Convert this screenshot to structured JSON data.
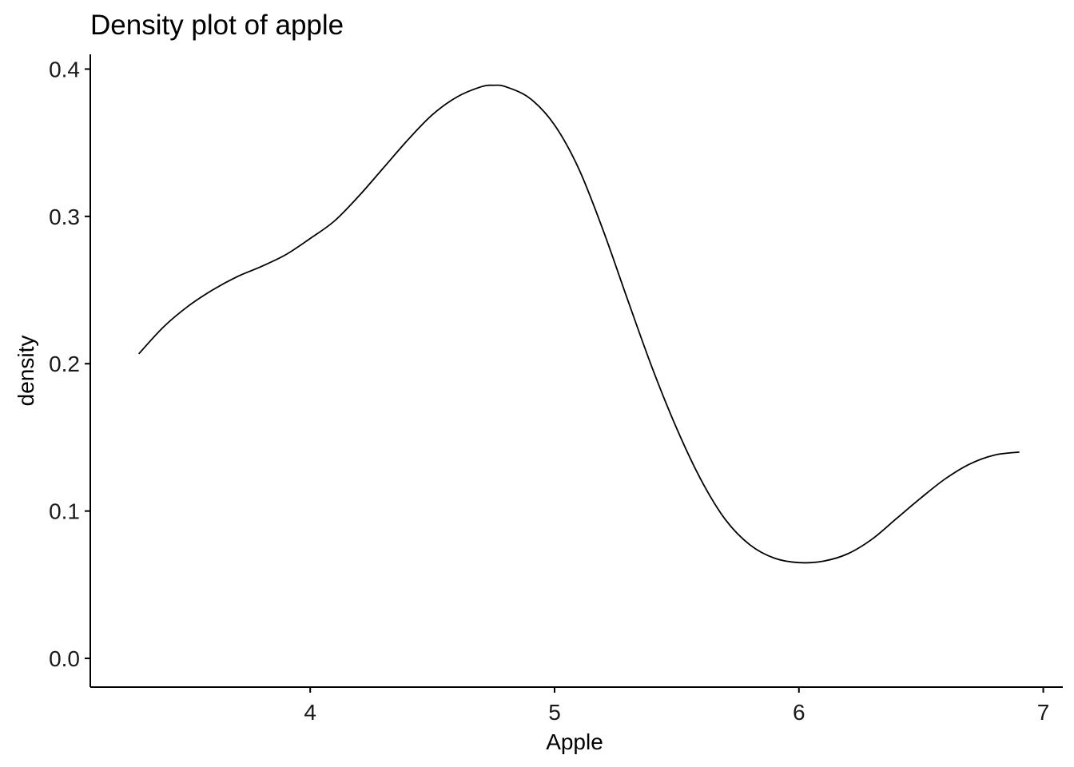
{
  "chart_data": {
    "type": "line",
    "title": "Density plot of apple",
    "xlabel": "Apple",
    "ylabel": "density",
    "xlim": [
      3.1,
      7.08
    ],
    "ylim": [
      -0.0195,
      0.41
    ],
    "x_ticks": [
      4,
      5,
      6,
      7
    ],
    "x_tick_labels": [
      "4",
      "5",
      "6",
      "7"
    ],
    "y_ticks": [
      0.0,
      0.1,
      0.2,
      0.3,
      0.4
    ],
    "y_tick_labels": [
      "0.0",
      "0.1",
      "0.2",
      "0.3",
      "0.4"
    ],
    "grid": false,
    "legend": "none",
    "line_color": "#000000",
    "series": [
      {
        "x": [
          3.3,
          3.4,
          3.5,
          3.6,
          3.7,
          3.8,
          3.9,
          4.0,
          4.1,
          4.2,
          4.3,
          4.4,
          4.5,
          4.6,
          4.7,
          4.75,
          4.8,
          4.9,
          5.0,
          5.1,
          5.2,
          5.3,
          5.4,
          5.5,
          5.6,
          5.7,
          5.8,
          5.9,
          6.0,
          6.1,
          6.2,
          6.3,
          6.4,
          6.5,
          6.6,
          6.7,
          6.8,
          6.9
        ],
        "y": [
          0.207,
          0.225,
          0.239,
          0.25,
          0.259,
          0.266,
          0.274,
          0.285,
          0.297,
          0.314,
          0.333,
          0.352,
          0.369,
          0.381,
          0.388,
          0.389,
          0.388,
          0.38,
          0.362,
          0.332,
          0.29,
          0.243,
          0.197,
          0.156,
          0.121,
          0.094,
          0.077,
          0.068,
          0.065,
          0.066,
          0.071,
          0.081,
          0.095,
          0.109,
          0.122,
          0.132,
          0.138,
          0.14
        ]
      }
    ]
  }
}
